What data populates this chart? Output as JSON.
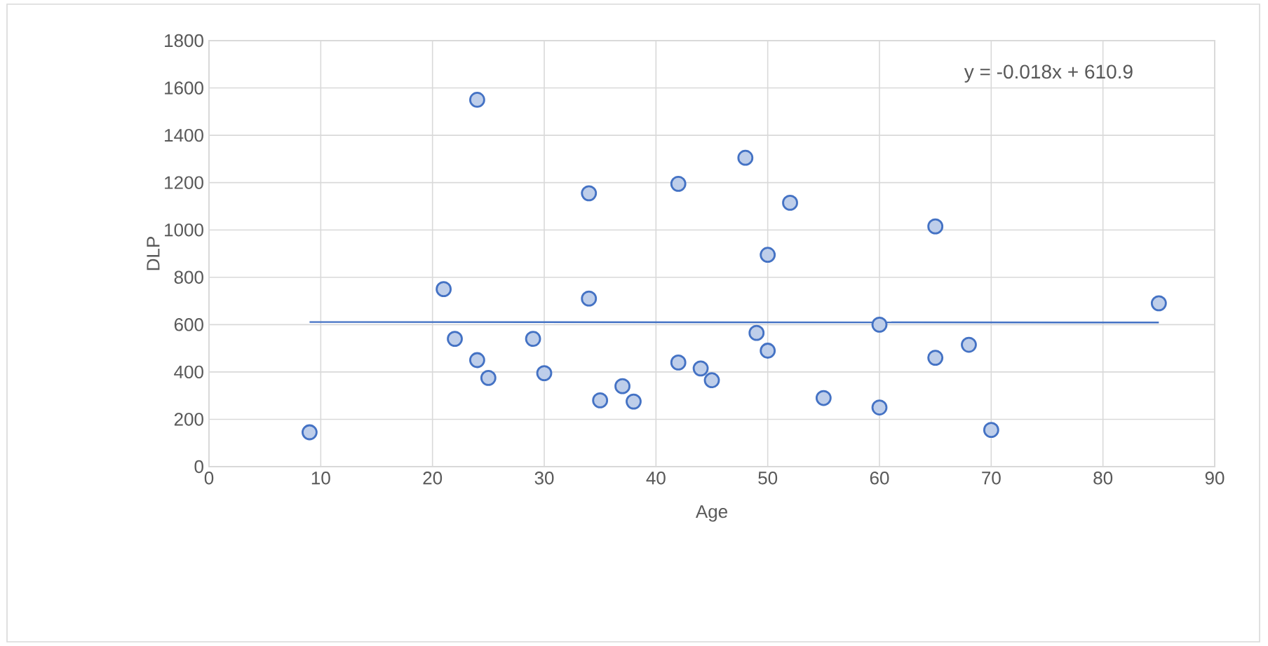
{
  "chart_data": {
    "type": "scatter",
    "xlabel": "Age",
    "ylabel": "DLP",
    "xlim": [
      0,
      90
    ],
    "xticks": [
      0,
      10,
      20,
      30,
      40,
      50,
      60,
      70,
      80,
      90
    ],
    "ylim": [
      0,
      1800
    ],
    "yticks": [
      0,
      200,
      400,
      600,
      800,
      1000,
      1200,
      1400,
      1600,
      1800
    ],
    "grid": true,
    "annotations": [
      "y = -0.018x + 610.9"
    ],
    "series": [
      {
        "color": "#4472c4",
        "marker": "circle",
        "x": [
          9,
          21,
          22,
          24,
          24,
          25,
          29,
          30,
          34,
          34,
          35,
          37,
          38,
          42,
          42,
          44,
          45,
          48,
          49,
          50,
          50,
          52,
          55,
          60,
          60,
          65,
          65,
          68,
          70,
          85
        ],
        "values": [
          145,
          750,
          540,
          450,
          1550,
          375,
          540,
          395,
          1155,
          710,
          280,
          340,
          275,
          1195,
          440,
          415,
          365,
          1305,
          565,
          895,
          490,
          1115,
          290,
          600,
          250,
          1015,
          460,
          515,
          155,
          690
        ]
      },
      {
        "type": "line",
        "color": "#4472c4",
        "marker": "none",
        "x": [
          9,
          85
        ],
        "values": [
          611,
          609
        ]
      }
    ]
  }
}
